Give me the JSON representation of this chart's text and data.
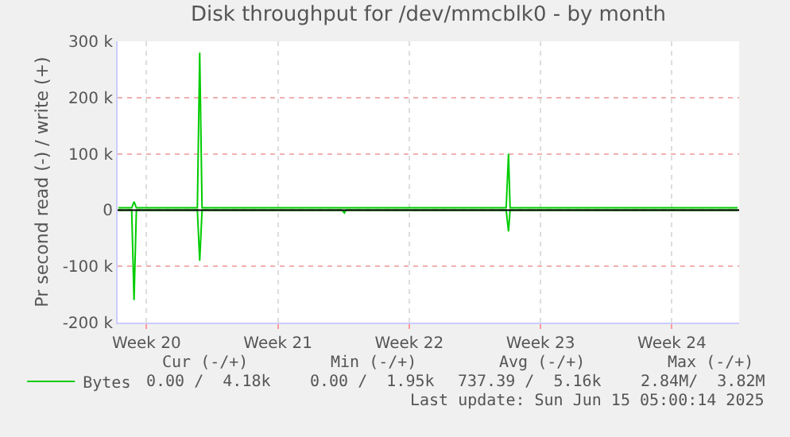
{
  "chart_data": {
    "type": "line",
    "title": "Disk throughput for /dev/mmcblk0 - by month",
    "ylabel": "Pr second read (-) / write (+)",
    "series": [
      {
        "name": "Bytes",
        "color": "#00cc00",
        "x": [
          "2025-05-14T00:00",
          "2025-05-14T17:00",
          "2025-05-14T20:00",
          "2025-05-14T23:00",
          "2025-05-18T05:00",
          "2025-05-18T08:00",
          "2025-05-18T11:00",
          "2025-06-03T16:00",
          "2025-06-03T19:00",
          "2025-06-03T21:00",
          "2025-06-16T00:00"
        ],
        "values": [
          4000,
          4000,
          15000,
          4000,
          4000,
          280000,
          4000,
          4000,
          100000,
          4000,
          4000
        ]
      },
      {
        "color": "#00cc00",
        "x": [
          "2025-05-14T00:00",
          "2025-05-14T17:00",
          "2025-05-14T20:00",
          "2025-05-14T23:00",
          "2025-05-18T05:00",
          "2025-05-18T08:00",
          "2025-05-18T11:00",
          "2025-05-25T22:00",
          "2025-05-26T01:00",
          "2025-05-26T03:00",
          "2025-06-03T16:00",
          "2025-06-03T19:00",
          "2025-06-03T21:00",
          "2025-06-16T00:00"
        ],
        "values": [
          0,
          0,
          -160000,
          0,
          0,
          -90000,
          0,
          0,
          -5000,
          0,
          0,
          -38000,
          0,
          0
        ]
      }
    ],
    "xlim": [
      "2025-05-13T23:00",
      "2025-06-16T02:00"
    ],
    "xticks": [
      {
        "value": "2025-05-15T12:00",
        "label": "Week 20"
      },
      {
        "value": "2025-05-22T12:00",
        "label": "Week 21"
      },
      {
        "value": "2025-05-29T12:00",
        "label": "Week 22"
      },
      {
        "value": "2025-06-05T12:00",
        "label": "Week 23"
      },
      {
        "value": "2025-06-12T12:00",
        "label": "Week 24"
      }
    ],
    "ylim": [
      -200000,
      300000
    ],
    "yticks": [
      {
        "value": -200000,
        "label": "-200 k"
      },
      {
        "value": -100000,
        "label": "-100 k"
      },
      {
        "value": 0,
        "label": "0"
      },
      {
        "value": 100000,
        "label": "100 k"
      },
      {
        "value": 200000,
        "label": "200 k"
      },
      {
        "value": 300000,
        "label": "300 k"
      }
    ],
    "ref_lines": [
      {
        "axis": "y",
        "value": 0,
        "color": "#000000"
      }
    ],
    "grid": true,
    "legend": "bottom left",
    "marker": "none",
    "line_style": "solid",
    "annotations": [
      "Cur (-/+)",
      "Min (-/+)",
      "Avg (-/+)",
      "Max (-/+)",
      "0.00 /  4.18k",
      "0.00 /  1.95k",
      "737.39 /  5.16k",
      "2.84M/  3.82M",
      "Last update: Sun Jun 15 05:00:14 2025"
    ]
  }
}
